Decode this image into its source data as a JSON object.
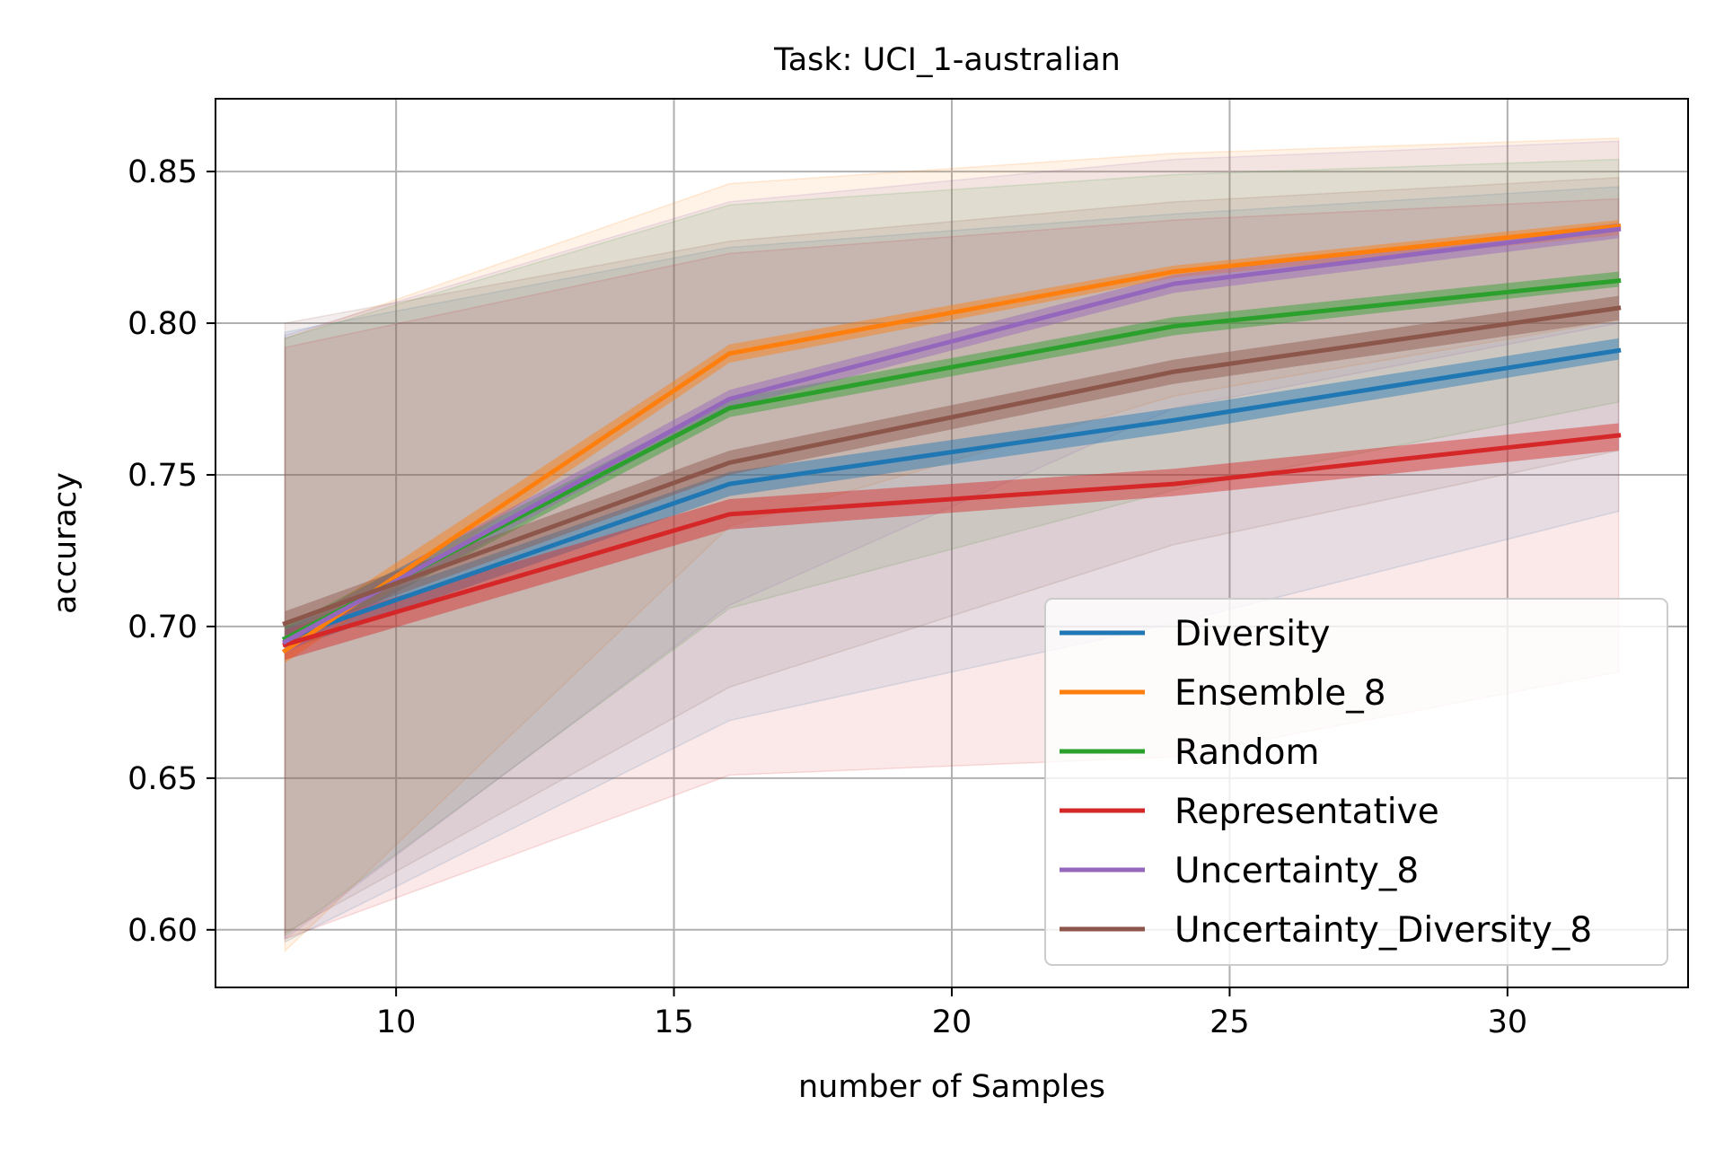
{
  "chart_data": {
    "type": "line",
    "title": "Task: UCI_1-australian",
    "xlabel": "number of Samples",
    "ylabel": "accuracy",
    "xlim": [
      6.75,
      33.25
    ],
    "ylim": [
      0.581,
      0.874
    ],
    "xticks": [
      10,
      15,
      20,
      25,
      30
    ],
    "yticks": [
      0.6,
      0.65,
      0.7,
      0.75,
      0.8,
      0.85
    ],
    "ytick_labels": [
      "0.60",
      "0.65",
      "0.70",
      "0.75",
      "0.80",
      "0.85"
    ],
    "grid": true,
    "legend_position": "lower right",
    "x": [
      8,
      16,
      24,
      32
    ],
    "series": [
      {
        "name": "Diversity",
        "color": "#1f77b4",
        "values": [
          0.696,
          0.747,
          0.768,
          0.791
        ],
        "sem_band": [
          [
            0.692,
            0.7
          ],
          [
            0.743,
            0.751
          ],
          [
            0.764,
            0.772
          ],
          [
            0.788,
            0.795
          ]
        ],
        "std_band": [
          [
            0.596,
            0.797
          ],
          [
            0.669,
            0.825
          ],
          [
            0.701,
            0.836
          ],
          [
            0.738,
            0.845
          ]
        ]
      },
      {
        "name": "Ensemble_8",
        "color": "#ff7f0e",
        "values": [
          0.692,
          0.79,
          0.817,
          0.832
        ],
        "sem_band": [
          [
            0.688,
            0.697
          ],
          [
            0.787,
            0.793
          ],
          [
            0.815,
            0.819
          ],
          [
            0.829,
            0.834
          ]
        ],
        "std_band": [
          [
            0.593,
            0.795
          ],
          [
            0.733,
            0.846
          ],
          [
            0.776,
            0.856
          ],
          [
            0.801,
            0.861
          ]
        ]
      },
      {
        "name": "Random",
        "color": "#2ca02c",
        "values": [
          0.696,
          0.772,
          0.799,
          0.814
        ],
        "sem_band": [
          [
            0.692,
            0.7
          ],
          [
            0.769,
            0.775
          ],
          [
            0.796,
            0.802
          ],
          [
            0.812,
            0.817
          ]
        ],
        "std_band": [
          [
            0.598,
            0.795
          ],
          [
            0.706,
            0.839
          ],
          [
            0.745,
            0.849
          ],
          [
            0.774,
            0.854
          ]
        ]
      },
      {
        "name": "Representative",
        "color": "#d62728",
        "values": [
          0.694,
          0.737,
          0.747,
          0.763
        ],
        "sem_band": [
          [
            0.689,
            0.699
          ],
          [
            0.732,
            0.742
          ],
          [
            0.743,
            0.752
          ],
          [
            0.758,
            0.767
          ]
        ],
        "std_band": [
          [
            0.597,
            0.792
          ],
          [
            0.651,
            0.823
          ],
          [
            0.657,
            0.834
          ],
          [
            0.685,
            0.841
          ]
        ]
      },
      {
        "name": "Uncertainty_8",
        "color": "#9467bd",
        "values": [
          0.695,
          0.775,
          0.813,
          0.831
        ],
        "sem_band": [
          [
            0.691,
            0.699
          ],
          [
            0.772,
            0.778
          ],
          [
            0.81,
            0.816
          ],
          [
            0.828,
            0.833
          ]
        ],
        "std_band": [
          [
            0.597,
            0.796
          ],
          [
            0.707,
            0.84
          ],
          [
            0.772,
            0.854
          ],
          [
            0.8,
            0.86
          ]
        ]
      },
      {
        "name": "Uncertainty_Diversity_8",
        "color": "#8c564b",
        "values": [
          0.701,
          0.754,
          0.784,
          0.805
        ],
        "sem_band": [
          [
            0.697,
            0.705
          ],
          [
            0.75,
            0.758
          ],
          [
            0.78,
            0.788
          ],
          [
            0.801,
            0.809
          ]
        ],
        "std_band": [
          [
            0.599,
            0.8
          ],
          [
            0.68,
            0.827
          ],
          [
            0.727,
            0.84
          ],
          [
            0.758,
            0.848
          ]
        ]
      }
    ]
  }
}
